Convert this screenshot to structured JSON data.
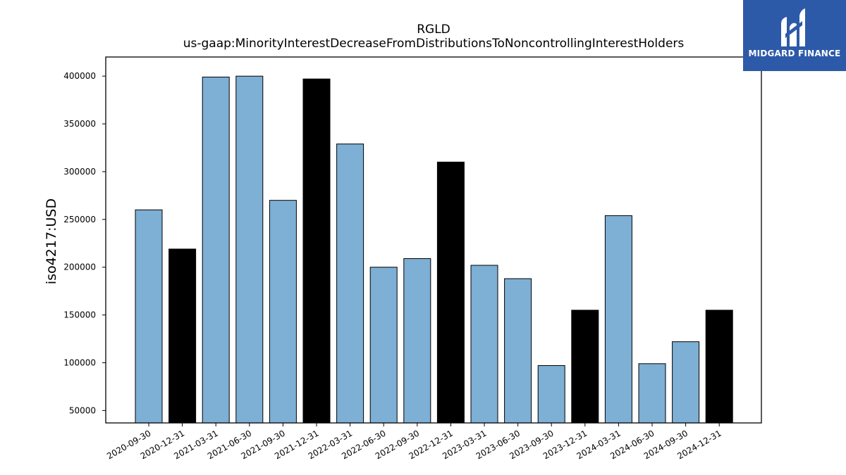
{
  "chart_data": {
    "type": "bar",
    "title": "RGLD",
    "subtitle": "us-gaap:MinorityInterestDecreaseFromDistributionsToNoncontrollingInterestHolders",
    "xlabel": "",
    "ylabel": "iso4217:USD",
    "ylim": [
      37000,
      420000
    ],
    "yticks": [
      50000,
      100000,
      150000,
      200000,
      250000,
      300000,
      350000,
      400000
    ],
    "grid": false,
    "categories": [
      "2020-09-30",
      "2020-12-31",
      "2021-03-31",
      "2021-06-30",
      "2021-09-30",
      "2021-12-31",
      "2022-03-31",
      "2022-06-30",
      "2022-09-30",
      "2022-12-31",
      "2023-03-31",
      "2023-06-30",
      "2023-09-30",
      "2023-12-31",
      "2024-03-31",
      "2024-06-30",
      "2024-09-30",
      "2024-12-31"
    ],
    "values": [
      260000,
      219000,
      399000,
      400000,
      270000,
      397000,
      329000,
      200000,
      209000,
      310000,
      202000,
      188000,
      97000,
      155000,
      254000,
      99000,
      122000,
      155000
    ],
    "colors": {
      "quarter": "#7eafd4",
      "year_end": "#000000",
      "edge": "#000000"
    }
  },
  "logo": {
    "text": "MIDGARD FINANCE",
    "background": "#2d5aa8"
  }
}
